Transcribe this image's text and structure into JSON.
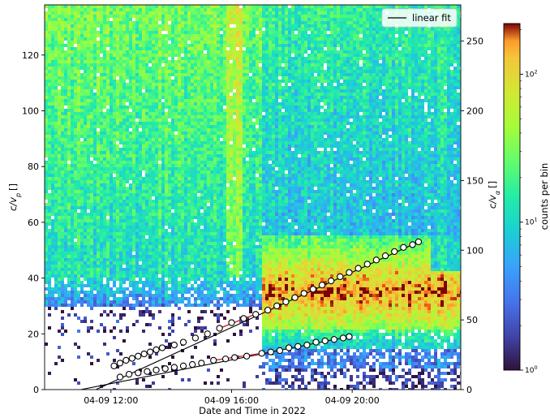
{
  "chart_data": {
    "type": "heatmap",
    "xlabel": "Date and Time in 2022",
    "ylabel_left_base": "c/v",
    "ylabel_left_sub": "p",
    "ylabel_left_units": "[]",
    "ylabel_right_base": "c/v",
    "ylabel_right_sub": "α",
    "ylabel_right_units": "[]",
    "xlim_hours": [
      9.8,
      23.6
    ],
    "x_ticks": [
      {
        "hour": 12,
        "label": "04-09 12:00"
      },
      {
        "hour": 16,
        "label": "04-09 16:00"
      },
      {
        "hour": 20,
        "label": "04-09 20:00"
      }
    ],
    "ylim_left": [
      0,
      138
    ],
    "ylim_right": [
      0,
      276
    ],
    "yticks_left": [
      0,
      20,
      40,
      60,
      80,
      100,
      120
    ],
    "yticks_right": [
      0,
      50,
      100,
      150,
      200,
      250
    ],
    "colorbar": {
      "label": "counts per bin",
      "scale": "log",
      "min": 1,
      "max": 220,
      "ticks": [
        {
          "value": 1,
          "base": "10",
          "exp": "0"
        },
        {
          "value": 10,
          "base": "10",
          "exp": "1"
        },
        {
          "value": 100,
          "base": "10",
          "exp": "2"
        }
      ]
    },
    "legend": {
      "label": "linear fit",
      "placement": "top-right"
    },
    "proton_markers": [
      [
        12.1,
        8.5
      ],
      [
        12.3,
        9.5
      ],
      [
        12.5,
        10.5
      ],
      [
        12.7,
        11.2
      ],
      [
        12.9,
        12.0
      ],
      [
        13.1,
        12.8
      ],
      [
        13.3,
        13.5
      ],
      [
        13.5,
        14.3
      ],
      [
        13.7,
        15.0
      ],
      [
        14.1,
        16.0
      ],
      [
        14.4,
        17.0
      ],
      [
        14.8,
        18.5
      ],
      [
        15.2,
        20.0
      ],
      [
        15.6,
        22.0
      ],
      [
        16.0,
        24.0
      ],
      [
        16.4,
        25.5
      ],
      [
        16.8,
        27.0
      ],
      [
        17.2,
        28.5
      ],
      [
        17.5,
        30.0
      ],
      [
        17.8,
        31.5
      ],
      [
        18.1,
        33.0
      ],
      [
        18.4,
        34.5
      ],
      [
        18.7,
        36.0
      ],
      [
        19.0,
        37.5
      ],
      [
        19.3,
        39.0
      ],
      [
        19.6,
        40.5
      ],
      [
        19.9,
        42.0
      ],
      [
        20.2,
        43.5
      ],
      [
        20.5,
        45.0
      ],
      [
        20.8,
        46.5
      ],
      [
        21.1,
        48.0
      ],
      [
        21.4,
        49.5
      ],
      [
        21.7,
        51.0
      ],
      [
        22.0,
        52.0
      ],
      [
        22.2,
        53.0
      ]
    ],
    "alpha_markers": [
      [
        12.3,
        4.5
      ],
      [
        12.6,
        5.5
      ],
      [
        12.9,
        6.0
      ],
      [
        13.2,
        6.5
      ],
      [
        13.5,
        7.0
      ],
      [
        13.8,
        7.5
      ],
      [
        14.1,
        8.0
      ],
      [
        14.4,
        8.5
      ],
      [
        14.7,
        9.0
      ],
      [
        15.0,
        9.5
      ],
      [
        15.4,
        10.5
      ],
      [
        15.8,
        11.0
      ],
      [
        16.1,
        11.5
      ],
      [
        16.5,
        12.0
      ],
      [
        17.0,
        13.0
      ],
      [
        17.3,
        13.5
      ],
      [
        17.6,
        14.0
      ],
      [
        17.9,
        15.0
      ],
      [
        18.2,
        15.5
      ],
      [
        18.5,
        16.0
      ],
      [
        18.8,
        17.0
      ],
      [
        19.1,
        17.5
      ],
      [
        19.4,
        18.0
      ],
      [
        19.7,
        18.5
      ],
      [
        19.9,
        19.0
      ]
    ],
    "fits": [
      {
        "name": "proton",
        "x0": 11.5,
        "y0": 0,
        "x1": 22.2,
        "y1": 53
      },
      {
        "name": "alpha",
        "x0": 11.0,
        "y0": 0,
        "x1": 19.9,
        "y1": 19
      }
    ],
    "fit_highlights": [
      {
        "name": "proton",
        "x0": 15.6,
        "y0": 22.0,
        "x1": 16.9,
        "y1": 27.5
      },
      {
        "name": "alpha",
        "x0": 15.4,
        "y0": 10.5,
        "x1": 17.0,
        "y1": 13.0
      }
    ],
    "colors": {
      "fit_line": "#000000",
      "fit_highlight": "#d62728",
      "marker_face": "#ffffff",
      "marker_edge": "#000000"
    }
  }
}
